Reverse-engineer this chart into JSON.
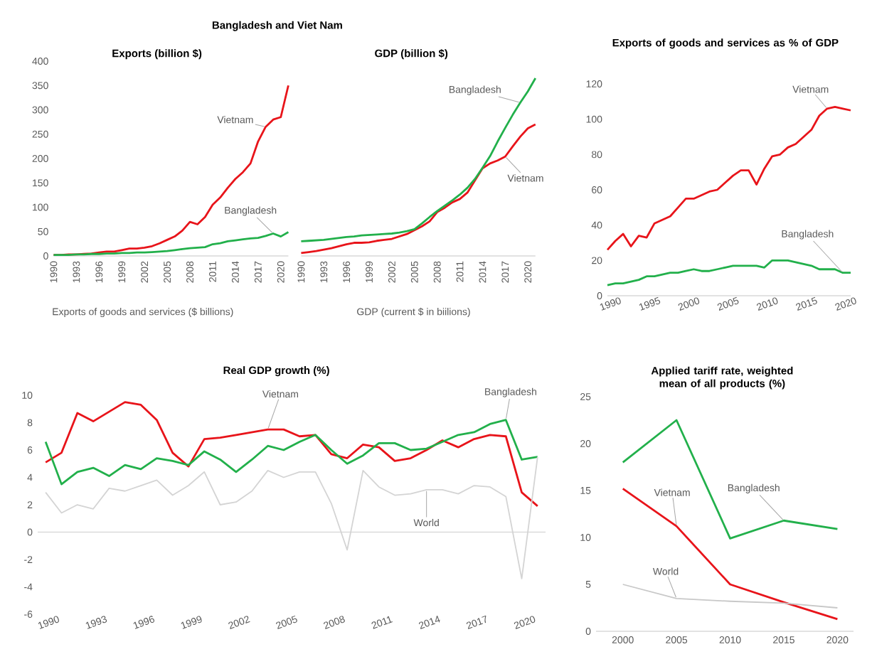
{
  "chart_data": [
    {
      "type": "line",
      "title": "Bangladesh and Viet Nam",
      "subtitle": "Exports  (billion $)",
      "xlabel": "Exports of goods and services ($ billions)",
      "x": [
        1990,
        1991,
        1992,
        1993,
        1994,
        1995,
        1996,
        1997,
        1998,
        1999,
        2000,
        2001,
        2002,
        2003,
        2004,
        2005,
        2006,
        2007,
        2008,
        2009,
        2010,
        2011,
        2012,
        2013,
        2014,
        2015,
        2016,
        2017,
        2018,
        2019,
        2020,
        2021
      ],
      "series": [
        {
          "name": "Vietnam",
          "color": "#e8141a",
          "values": [
            2,
            2,
            3,
            3,
            4,
            5,
            7,
            9,
            9,
            12,
            15,
            15,
            17,
            20,
            26,
            33,
            40,
            52,
            70,
            65,
            80,
            105,
            120,
            140,
            158,
            172,
            190,
            235,
            265,
            280,
            285,
            350
          ]
        },
        {
          "name": "Bangladesh",
          "color": "#22b04b",
          "values": [
            2,
            2,
            2,
            3,
            3,
            4,
            4,
            5,
            5,
            6,
            6,
            7,
            7,
            8,
            9,
            10,
            12,
            14,
            16,
            17,
            18,
            24,
            26,
            30,
            32,
            34,
            36,
            37,
            41,
            46,
            40,
            49
          ]
        }
      ],
      "xlim": [
        1990,
        2021
      ],
      "ylim": [
        0,
        400
      ],
      "xticks": [
        1990,
        1993,
        1996,
        1999,
        2002,
        2005,
        2008,
        2011,
        2014,
        2017,
        2020
      ],
      "yticks": [
        0,
        50,
        100,
        150,
        200,
        250,
        300,
        350,
        400
      ]
    },
    {
      "type": "line",
      "subtitle": "GDP (billion $)",
      "xlabel": "GDP (current $ in biilions)",
      "x": [
        1990,
        1991,
        1992,
        1993,
        1994,
        1995,
        1996,
        1997,
        1998,
        1999,
        2000,
        2001,
        2002,
        2003,
        2004,
        2005,
        2006,
        2007,
        2008,
        2009,
        2010,
        2011,
        2012,
        2013,
        2014,
        2015,
        2016,
        2017,
        2018,
        2019,
        2020,
        2021
      ],
      "series": [
        {
          "name": "Vietnam",
          "color": "#e8141a",
          "values": [
            6,
            8,
            10,
            13,
            16,
            20,
            24,
            27,
            27,
            28,
            31,
            33,
            35,
            40,
            45,
            53,
            61,
            71,
            90,
            99,
            110,
            117,
            130,
            155,
            180,
            190,
            196,
            204,
            225,
            245,
            262,
            270
          ]
        },
        {
          "name": "Bangladesh",
          "color": "#22b04b",
          "values": [
            30,
            31,
            32,
            33,
            35,
            37,
            39,
            40,
            42,
            43,
            44,
            45,
            46,
            48,
            51,
            55,
            67,
            80,
            92,
            103,
            114,
            126,
            140,
            158,
            181,
            205,
            235,
            263,
            290,
            315,
            338,
            365
          ]
        }
      ],
      "xlim": [
        1990,
        2021
      ],
      "ylim": [
        0,
        400
      ],
      "xticks": [
        1990,
        1993,
        1996,
        1999,
        2002,
        2005,
        2008,
        2011,
        2014,
        2017,
        2020
      ],
      "tick_labels": "x"
    },
    {
      "type": "line",
      "title": "Exports of goods and services as % of GDP",
      "x": [
        1990,
        1991,
        1992,
        1993,
        1994,
        1995,
        1996,
        1997,
        1998,
        1999,
        2000,
        2001,
        2002,
        2003,
        2004,
        2005,
        2006,
        2007,
        2008,
        2009,
        2010,
        2011,
        2012,
        2013,
        2014,
        2015,
        2016,
        2017,
        2018,
        2019,
        2020,
        2021
      ],
      "series": [
        {
          "name": "Vietnam",
          "color": "#e8141a",
          "values": [
            26,
            31,
            35,
            28,
            34,
            33,
            41,
            43,
            45,
            50,
            55,
            55,
            57,
            59,
            60,
            64,
            68,
            71,
            71,
            63,
            72,
            79,
            80,
            84,
            86,
            90,
            94,
            102,
            106,
            107,
            106,
            105
          ]
        },
        {
          "name": "Bangladesh",
          "color": "#22b04b",
          "values": [
            6,
            7,
            7,
            8,
            9,
            11,
            11,
            12,
            13,
            13,
            14,
            15,
            14,
            14,
            15,
            16,
            17,
            17,
            17,
            17,
            16,
            20,
            20,
            20,
            19,
            18,
            17,
            15,
            15,
            15,
            13,
            13
          ]
        }
      ],
      "xlim": [
        1990,
        2021
      ],
      "ylim": [
        0,
        120
      ],
      "xticks": [
        1990,
        1995,
        2000,
        2005,
        2010,
        2015,
        2020
      ],
      "yticks": [
        0,
        20,
        40,
        60,
        80,
        100,
        120
      ]
    },
    {
      "type": "line",
      "title": "Real GDP growth (%)",
      "x": [
        1990,
        1991,
        1992,
        1993,
        1994,
        1995,
        1996,
        1997,
        1998,
        1999,
        2000,
        2001,
        2002,
        2003,
        2004,
        2005,
        2006,
        2007,
        2008,
        2009,
        2010,
        2011,
        2012,
        2013,
        2014,
        2015,
        2016,
        2017,
        2018,
        2019,
        2020,
        2021
      ],
      "series": [
        {
          "name": "Vietnam",
          "color": "#e8141a",
          "values": [
            5.1,
            5.8,
            8.7,
            8.1,
            8.8,
            9.5,
            9.3,
            8.2,
            5.8,
            4.8,
            6.8,
            6.9,
            7.1,
            7.3,
            7.5,
            7.5,
            7.0,
            7.1,
            5.7,
            5.4,
            6.4,
            6.2,
            5.2,
            5.4,
            6.0,
            6.7,
            6.2,
            6.8,
            7.1,
            7.0,
            2.9,
            1.9
          ]
        },
        {
          "name": "Bangladesh",
          "color": "#22b04b",
          "values": [
            6.6,
            3.5,
            4.4,
            4.7,
            4.1,
            4.9,
            4.6,
            5.4,
            5.2,
            4.9,
            5.9,
            5.3,
            4.4,
            5.3,
            6.3,
            6.0,
            6.6,
            7.1,
            6.0,
            5.0,
            5.6,
            6.5,
            6.5,
            6.0,
            6.1,
            6.6,
            7.1,
            7.3,
            7.9,
            8.2,
            5.3,
            5.5
          ]
        },
        {
          "name": "World",
          "color": "#d4d4d4",
          "values": [
            2.9,
            1.4,
            2.0,
            1.7,
            3.2,
            3.0,
            3.4,
            3.8,
            2.7,
            3.4,
            4.4,
            2.0,
            2.2,
            3.0,
            4.5,
            4.0,
            4.4,
            4.4,
            2.1,
            -1.3,
            4.5,
            3.3,
            2.7,
            2.8,
            3.1,
            3.1,
            2.8,
            3.4,
            3.3,
            2.6,
            -3.4,
            5.5
          ]
        }
      ],
      "xlim": [
        1989.5,
        2021.5
      ],
      "ylim": [
        -6,
        10
      ],
      "xticks": [
        1990,
        1993,
        1996,
        1999,
        2002,
        2005,
        2008,
        2011,
        2014,
        2017,
        2020
      ],
      "yticks": [
        -6,
        -4,
        -2,
        0,
        2,
        4,
        6,
        8,
        10
      ]
    },
    {
      "type": "line",
      "title": "Applied tariff rate, weighted mean of all products (%)",
      "x": [
        2000,
        2005,
        2010,
        2015,
        2020
      ],
      "series": [
        {
          "name": "Vietnam",
          "color": "#e8141a",
          "values": [
            15.2,
            11.2,
            5.0,
            3.1,
            1.3
          ]
        },
        {
          "name": "Bangladesh",
          "color": "#22b04b",
          "values": [
            18.0,
            22.5,
            9.9,
            11.8,
            10.9
          ]
        },
        {
          "name": "World",
          "color": "#c8c8c8",
          "values": [
            5.0,
            3.5,
            3.2,
            3.0,
            2.5
          ]
        }
      ],
      "xlim": [
        1997.5,
        2021.5
      ],
      "ylim": [
        0,
        25
      ],
      "xticks": [
        2000,
        2005,
        2010,
        2015,
        2020
      ],
      "yticks": [
        0,
        5,
        10,
        15,
        20,
        25
      ]
    }
  ]
}
